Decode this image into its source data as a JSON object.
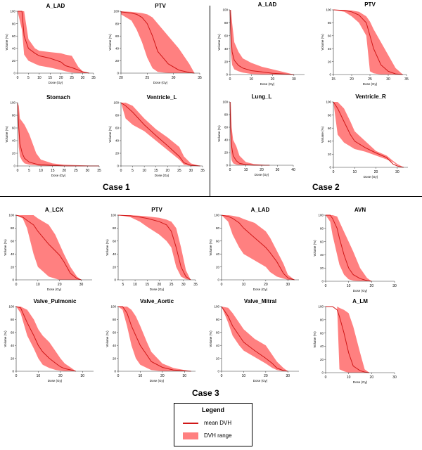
{
  "colors": {
    "mean": "#d01818",
    "band": "#ff8080",
    "axis": "#333333"
  },
  "case_labels": {
    "case1": "Case 1",
    "case2": "Case 2",
    "case3": "Case 3"
  },
  "legend": {
    "title": "Legend",
    "mean_label": "mean DVH",
    "range_label": "DVH range"
  },
  "chart_data": [
    {
      "title": "A_LAD",
      "xlabel": "Dose (Gy)",
      "ylabel": "Volume (%)",
      "xlim": [
        0,
        35
      ],
      "ylim": [
        0,
        100
      ],
      "xticks": [
        0,
        5,
        10,
        15,
        20,
        25,
        30,
        35
      ],
      "yticks": [
        0,
        20,
        40,
        60,
        80,
        100
      ],
      "x": [
        0,
        2,
        3,
        5,
        8,
        10,
        15,
        20,
        22,
        25,
        28,
        30,
        33
      ],
      "mean": [
        100,
        100,
        60,
        40,
        32,
        28,
        24,
        18,
        12,
        9,
        5,
        2,
        0
      ],
      "upper": [
        100,
        100,
        100,
        55,
        40,
        36,
        34,
        32,
        30,
        28,
        10,
        3,
        0
      ],
      "lower": [
        100,
        70,
        30,
        20,
        15,
        12,
        9,
        5,
        3,
        1,
        0,
        0,
        0
      ]
    },
    {
      "title": "PTV",
      "xlabel": "Dose (Gy)",
      "ylabel": "Volume (%)",
      "xlim": [
        20,
        35
      ],
      "ylim": [
        0,
        100
      ],
      "xticks": [
        20,
        25,
        30,
        35
      ],
      "yticks": [
        0,
        20,
        40,
        60,
        80,
        100
      ],
      "x": [
        17,
        20,
        22,
        23,
        24,
        25,
        26,
        27,
        29,
        31,
        33,
        34
      ],
      "mean": [
        100,
        99,
        97,
        95,
        90,
        80,
        60,
        35,
        15,
        5,
        1,
        0
      ],
      "upper": [
        100,
        100,
        99,
        98,
        97,
        95,
        90,
        80,
        60,
        40,
        15,
        0
      ],
      "lower": [
        100,
        95,
        85,
        70,
        50,
        25,
        8,
        2,
        0,
        0,
        0,
        0
      ]
    },
    {
      "title": "Stomach",
      "xlabel": "Dose (Gy)",
      "ylabel": "Volume (%)",
      "xlim": [
        0,
        35
      ],
      "ylim": [
        0,
        100
      ],
      "xticks": [
        0,
        5,
        10,
        15,
        20,
        25,
        30,
        35
      ],
      "yticks": [
        0,
        20,
        40,
        60,
        80,
        100
      ],
      "x": [
        0,
        0.5,
        1,
        2,
        3,
        5,
        8,
        10,
        15,
        20,
        35
      ],
      "mean": [
        100,
        60,
        35,
        20,
        12,
        6,
        3,
        2,
        1,
        0,
        0
      ],
      "upper": [
        100,
        95,
        75,
        70,
        65,
        50,
        20,
        10,
        4,
        2,
        0
      ],
      "lower": [
        100,
        30,
        15,
        8,
        4,
        2,
        1,
        0,
        0,
        0,
        0
      ]
    },
    {
      "title": "Ventricle_L",
      "xlabel": "Dose (Gy)",
      "ylabel": "Volume (%)",
      "xlim": [
        0,
        35
      ],
      "ylim": [
        0,
        100
      ],
      "xticks": [
        0,
        5,
        10,
        15,
        20,
        25,
        30,
        35
      ],
      "yticks": [
        0,
        20,
        40,
        60,
        80,
        100
      ],
      "x": [
        0,
        2,
        5,
        10,
        15,
        20,
        25,
        27,
        30,
        34
      ],
      "mean": [
        100,
        95,
        85,
        65,
        48,
        32,
        15,
        5,
        1,
        0
      ],
      "upper": [
        100,
        100,
        95,
        75,
        58,
        45,
        30,
        15,
        4,
        0
      ],
      "lower": [
        100,
        75,
        65,
        55,
        40,
        25,
        10,
        2,
        0,
        0
      ]
    },
    {
      "title": "A_LAD",
      "xlabel": "Dose (Gy)",
      "ylabel": "Volume (%)",
      "xlim": [
        0,
        35
      ],
      "ylim": [
        0,
        100
      ],
      "xticks": [
        0,
        10,
        20,
        30
      ],
      "yticks": [
        0,
        20,
        40,
        60,
        80,
        100
      ],
      "x": [
        0,
        0.5,
        1,
        2,
        4,
        6,
        10,
        15,
        20,
        25,
        30
      ],
      "mean": [
        100,
        60,
        35,
        22,
        14,
        10,
        6,
        4,
        2,
        1,
        0
      ],
      "upper": [
        100,
        100,
        80,
        50,
        35,
        25,
        18,
        12,
        8,
        4,
        0
      ],
      "lower": [
        100,
        30,
        15,
        8,
        5,
        3,
        1,
        0,
        0,
        0,
        0
      ]
    },
    {
      "title": "PTV",
      "xlabel": "Dose (Gy)",
      "ylabel": "Volume (%)",
      "xlim": [
        15,
        35
      ],
      "ylim": [
        0,
        100
      ],
      "xticks": [
        15,
        20,
        25,
        30,
        35
      ],
      "yticks": [
        0,
        20,
        40,
        60,
        80,
        100
      ],
      "x": [
        15,
        18,
        20,
        22,
        24,
        25,
        26,
        28,
        30,
        32,
        34
      ],
      "mean": [
        100,
        99,
        97,
        92,
        80,
        60,
        40,
        15,
        5,
        1,
        0
      ],
      "upper": [
        100,
        100,
        99,
        97,
        90,
        82,
        70,
        50,
        30,
        10,
        0
      ],
      "lower": [
        100,
        97,
        90,
        80,
        60,
        5,
        2,
        0,
        0,
        0,
        0
      ]
    },
    {
      "title": "Lung_L",
      "xlabel": "Dose (Gy)",
      "ylabel": "Volume (%)",
      "xlim": [
        0,
        40
      ],
      "ylim": [
        0,
        100
      ],
      "xticks": [
        0,
        10,
        20,
        30,
        40
      ],
      "yticks": [
        0,
        20,
        40,
        60,
        80,
        100
      ],
      "x": [
        0,
        0.5,
        1,
        2,
        4,
        6,
        10,
        15,
        25
      ],
      "mean": [
        100,
        55,
        30,
        15,
        7,
        3,
        1,
        0,
        0
      ],
      "upper": [
        100,
        100,
        60,
        40,
        30,
        15,
        5,
        2,
        0
      ],
      "lower": [
        100,
        20,
        8,
        3,
        1,
        0,
        0,
        0,
        0
      ]
    },
    {
      "title": "Ventricle_R",
      "xlabel": "Dose (Gy)",
      "ylabel": "Volume (%)",
      "xlim": [
        0,
        35
      ],
      "ylim": [
        0,
        100
      ],
      "xticks": [
        0,
        10,
        20,
        30
      ],
      "yticks": [
        0,
        20,
        40,
        60,
        80,
        100
      ],
      "x": [
        0,
        2,
        5,
        8,
        10,
        15,
        20,
        25,
        28,
        30,
        33
      ],
      "mean": [
        100,
        90,
        70,
        50,
        40,
        30,
        22,
        15,
        5,
        2,
        0
      ],
      "upper": [
        100,
        100,
        90,
        70,
        55,
        40,
        25,
        18,
        10,
        5,
        0
      ],
      "lower": [
        100,
        50,
        38,
        32,
        28,
        24,
        18,
        12,
        8,
        3,
        0
      ]
    },
    {
      "title": "A_LCX",
      "xlabel": "Dose (Gy)",
      "ylabel": "Volume (%)",
      "xlim": [
        0,
        35
      ],
      "ylim": [
        0,
        100
      ],
      "xticks": [
        0,
        10,
        20,
        30
      ],
      "yticks": [
        0,
        20,
        40,
        60,
        80,
        100
      ],
      "x": [
        0,
        3,
        5,
        8,
        10,
        15,
        18,
        20,
        22,
        25,
        28,
        30
      ],
      "mean": [
        100,
        97,
        92,
        85,
        75,
        55,
        45,
        38,
        28,
        10,
        2,
        0
      ],
      "upper": [
        100,
        100,
        100,
        100,
        95,
        85,
        70,
        55,
        40,
        20,
        5,
        0
      ],
      "lower": [
        100,
        95,
        80,
        40,
        20,
        5,
        2,
        0,
        0,
        0,
        0,
        0
      ]
    },
    {
      "title": "PTV",
      "xlabel": "Dose (Gy)",
      "ylabel": "Volume (%)",
      "xlim": [
        3,
        35
      ],
      "ylim": [
        0,
        100
      ],
      "xticks": [
        5,
        10,
        15,
        20,
        25,
        30,
        35
      ],
      "yticks": [
        0,
        20,
        40,
        60,
        80,
        100
      ],
      "x": [
        3,
        8,
        12,
        15,
        20,
        23,
        25,
        27,
        29,
        31,
        33
      ],
      "mean": [
        100,
        99,
        97,
        95,
        90,
        85,
        75,
        50,
        20,
        5,
        0
      ],
      "upper": [
        100,
        100,
        99,
        98,
        96,
        93,
        90,
        80,
        50,
        15,
        0
      ],
      "lower": [
        100,
        97,
        90,
        82,
        70,
        60,
        50,
        20,
        5,
        1,
        0
      ]
    },
    {
      "title": "A_LAD",
      "xlabel": "Dose (Gy)",
      "ylabel": "Volume (%)",
      "xlim": [
        0,
        35
      ],
      "ylim": [
        0,
        100
      ],
      "xticks": [
        0,
        10,
        20,
        30
      ],
      "yticks": [
        0,
        20,
        40,
        60,
        80,
        100
      ],
      "x": [
        0,
        3,
        5,
        8,
        10,
        15,
        20,
        22,
        25,
        28,
        30,
        33
      ],
      "mean": [
        100,
        98,
        95,
        88,
        80,
        65,
        50,
        42,
        28,
        10,
        3,
        0
      ],
      "upper": [
        100,
        100,
        99,
        97,
        94,
        88,
        75,
        65,
        45,
        25,
        8,
        0
      ],
      "lower": [
        100,
        90,
        70,
        50,
        40,
        30,
        20,
        12,
        5,
        2,
        0,
        0
      ]
    },
    {
      "title": "AVN",
      "xlabel": "Dose (Gy)",
      "ylabel": "Volume (%)",
      "xlim": [
        0,
        30
      ],
      "ylim": [
        0,
        100
      ],
      "xticks": [
        0,
        10,
        20,
        30
      ],
      "yticks": [
        0,
        20,
        40,
        60,
        80,
        100
      ],
      "x": [
        0,
        2,
        3,
        5,
        6,
        8,
        10,
        12,
        15,
        18,
        20
      ],
      "mean": [
        100,
        100,
        95,
        80,
        65,
        40,
        20,
        10,
        4,
        1,
        0
      ],
      "upper": [
        100,
        100,
        100,
        98,
        90,
        75,
        60,
        45,
        20,
        5,
        0
      ],
      "lower": [
        100,
        90,
        70,
        40,
        25,
        10,
        3,
        1,
        0,
        0,
        0
      ]
    },
    {
      "title": "Valve_Pulmonic",
      "xlabel": "Dose (Gy)",
      "ylabel": "Volume (%)",
      "xlim": [
        0,
        35
      ],
      "ylim": [
        0,
        100
      ],
      "xticks": [
        0,
        10,
        20,
        30
      ],
      "yticks": [
        0,
        20,
        40,
        60,
        80,
        100
      ],
      "x": [
        0,
        2,
        5,
        8,
        10,
        12,
        15,
        18,
        20,
        22,
        25,
        27
      ],
      "mean": [
        100,
        98,
        75,
        55,
        40,
        30,
        20,
        12,
        7,
        4,
        2,
        0
      ],
      "upper": [
        100,
        100,
        95,
        80,
        65,
        55,
        45,
        30,
        20,
        12,
        5,
        0
      ],
      "lower": [
        100,
        90,
        55,
        35,
        20,
        10,
        5,
        2,
        1,
        0,
        0,
        0
      ]
    },
    {
      "title": "Valve_Aortic",
      "xlabel": "Dose (Gy)",
      "ylabel": "Volume (%)",
      "xlim": [
        0,
        35
      ],
      "ylim": [
        0,
        100
      ],
      "xticks": [
        0,
        10,
        20,
        30
      ],
      "yticks": [
        0,
        20,
        40,
        60,
        80,
        100
      ],
      "x": [
        0,
        2,
        4,
        6,
        8,
        10,
        13,
        15,
        20,
        25,
        33
      ],
      "mean": [
        100,
        100,
        90,
        70,
        55,
        40,
        25,
        15,
        6,
        2,
        0
      ],
      "upper": [
        100,
        100,
        100,
        95,
        85,
        70,
        45,
        30,
        12,
        5,
        0
      ],
      "lower": [
        100,
        95,
        70,
        40,
        20,
        10,
        5,
        2,
        0,
        0,
        0
      ]
    },
    {
      "title": "Valve_Mitral",
      "xlabel": "Dose (Gy)",
      "ylabel": "Volume (%)",
      "xlim": [
        0,
        35
      ],
      "ylim": [
        0,
        100
      ],
      "xticks": [
        0,
        10,
        20,
        30
      ],
      "yticks": [
        0,
        20,
        40,
        60,
        80,
        100
      ],
      "x": [
        0,
        3,
        5,
        8,
        10,
        15,
        20,
        23,
        25,
        28,
        30
      ],
      "mean": [
        100,
        85,
        70,
        55,
        45,
        32,
        20,
        12,
        5,
        1,
        0
      ],
      "upper": [
        100,
        98,
        90,
        75,
        65,
        50,
        40,
        25,
        15,
        5,
        0
      ],
      "lower": [
        100,
        75,
        55,
        40,
        32,
        22,
        12,
        5,
        2,
        0,
        0
      ]
    },
    {
      "title": "A_LM",
      "xlabel": "Dose (Gy)",
      "ylabel": "Volume (%)",
      "xlim": [
        0,
        30
      ],
      "ylim": [
        0,
        100
      ],
      "xticks": [
        0,
        10,
        20,
        30
      ],
      "yticks": [
        0,
        20,
        40,
        60,
        80,
        100
      ],
      "x": [
        0,
        3,
        5,
        6,
        8,
        10,
        12,
        15,
        17,
        19
      ],
      "mean": [
        100,
        100,
        95,
        85,
        60,
        30,
        10,
        3,
        1,
        0
      ],
      "upper": [
        100,
        100,
        100,
        98,
        95,
        90,
        70,
        30,
        5,
        0
      ],
      "lower": [
        100,
        100,
        100,
        5,
        2,
        0,
        0,
        0,
        0,
        0
      ]
    }
  ]
}
